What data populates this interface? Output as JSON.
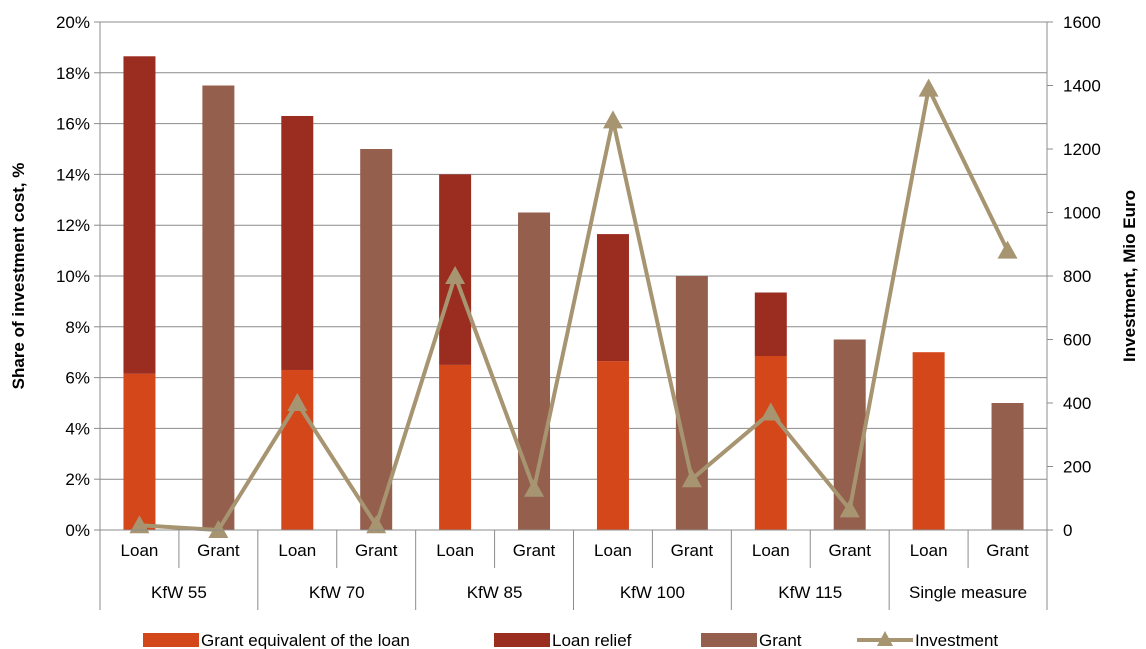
{
  "chart_data": {
    "type": "bar",
    "ylabel": "Share of investment cost, %",
    "y2label": "Investment, Mio Euro",
    "ylim": [
      0,
      20
    ],
    "y2lim": [
      0,
      1600
    ],
    "yticks": [
      "0%",
      "2%",
      "4%",
      "6%",
      "8%",
      "10%",
      "12%",
      "14%",
      "16%",
      "18%",
      "20%"
    ],
    "y2ticks": [
      "0",
      "200",
      "400",
      "600",
      "800",
      "1000",
      "1200",
      "1400",
      "1600"
    ],
    "grid": true,
    "legend_position": "bottom",
    "groups": [
      {
        "name": "KfW 55",
        "subs": [
          "Loan",
          "Grant"
        ]
      },
      {
        "name": "KfW 70",
        "subs": [
          "Loan",
          "Grant"
        ]
      },
      {
        "name": "KfW 85",
        "subs": [
          "Loan",
          "Grant"
        ]
      },
      {
        "name": "KfW 100",
        "subs": [
          "Loan",
          "Grant"
        ]
      },
      {
        "name": "KfW 115",
        "subs": [
          "Loan",
          "Grant"
        ]
      },
      {
        "name": "Single measure",
        "subs": [
          "Loan",
          "Grant"
        ]
      }
    ],
    "series": [
      {
        "name": "Grant equivalent of the loan",
        "type": "bar",
        "stack": "s",
        "color": "#d4471a",
        "values": [
          6.15,
          0,
          6.3,
          0,
          6.5,
          0,
          6.65,
          0,
          6.85,
          0,
          7.0,
          0
        ]
      },
      {
        "name": "Loan relief",
        "type": "bar",
        "stack": "s",
        "color": "#9b2c20",
        "values": [
          12.5,
          0,
          10.0,
          0,
          7.5,
          0,
          5.0,
          0,
          2.5,
          0,
          0,
          0
        ]
      },
      {
        "name": "Grant",
        "type": "bar",
        "stack": "s",
        "color": "#955f4d",
        "values": [
          0,
          17.5,
          0,
          15.0,
          0,
          12.5,
          0,
          10.0,
          0,
          7.5,
          0,
          5.0
        ]
      },
      {
        "name": "Investment",
        "type": "line",
        "axis": "right",
        "color": "#a79571",
        "values": [
          15,
          0,
          400,
          15,
          800,
          130,
          1290,
          160,
          370,
          65,
          1390,
          880
        ]
      }
    ]
  }
}
